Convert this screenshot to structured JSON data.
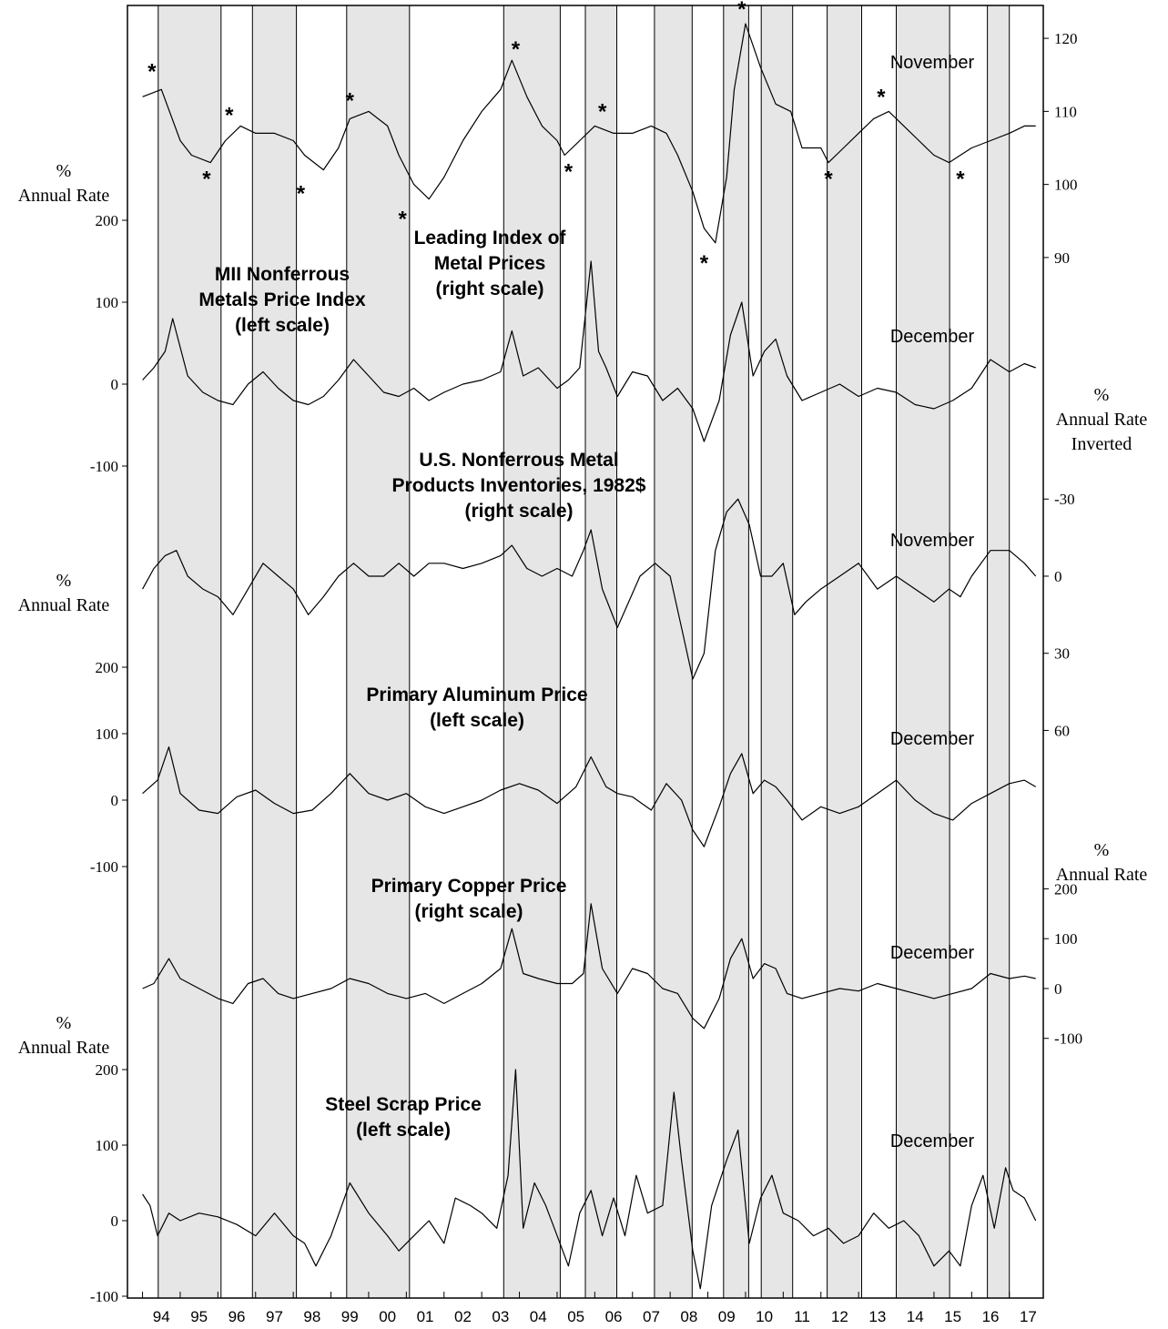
{
  "chart_data": {
    "type": "line",
    "year_ticks": [
      "94",
      "95",
      "96",
      "97",
      "98",
      "99",
      "00",
      "01",
      "02",
      "03",
      "04",
      "05",
      "06",
      "07",
      "08",
      "09",
      "10",
      "11",
      "12",
      "13",
      "14",
      "15",
      "16",
      "17"
    ],
    "shaded_periods": [
      [
        "1994-06",
        "1996-02"
      ],
      [
        "1996-12",
        "1998-02"
      ],
      [
        "1999-06",
        "2001-02"
      ],
      [
        "2003-08",
        "2005-02"
      ],
      [
        "2005-10",
        "2006-08"
      ],
      [
        "2007-08",
        "2008-08"
      ],
      [
        "2009-06",
        "2010-02"
      ],
      [
        "2010-06",
        "2011-04"
      ],
      [
        "2012-03",
        "2013-02"
      ],
      [
        "2014-01",
        "2015-06"
      ],
      [
        "2016-06",
        "2017-01"
      ]
    ],
    "panels": [
      {
        "id": "leading-index",
        "label_lines": [
          "Leading Index of",
          "Metal Prices",
          "(right scale)"
        ],
        "latest_month": "November",
        "axis_side": "right",
        "axis_unit_lines": [],
        "ticks": [
          120,
          110,
          100,
          90
        ],
        "tick_format": "plain",
        "ylim": [
          86,
          124
        ],
        "inverted": false,
        "x": [
          1994.0,
          1994.5,
          1995.0,
          1995.3,
          1995.8,
          1996.2,
          1996.6,
          1997.0,
          1997.5,
          1998.0,
          1998.3,
          1998.8,
          1999.2,
          1999.5,
          2000.0,
          2000.5,
          2000.8,
          2001.2,
          2001.6,
          2002.0,
          2002.5,
          2003.0,
          2003.5,
          2003.8,
          2004.2,
          2004.6,
          2005.0,
          2005.2,
          2005.6,
          2006.0,
          2006.5,
          2007.0,
          2007.5,
          2007.9,
          2008.2,
          2008.6,
          2008.9,
          2009.2,
          2009.5,
          2009.7,
          2010.0,
          2010.4,
          2010.8,
          2011.2,
          2011.5,
          2012.0,
          2012.2,
          2012.6,
          2013.0,
          2013.4,
          2013.8,
          2014.2,
          2014.6,
          2015.0,
          2015.4,
          2015.7,
          2016.0,
          2016.5,
          2017.0,
          2017.4,
          2017.7
        ],
        "y": [
          112,
          113,
          106,
          104,
          103,
          106,
          108,
          107,
          107,
          106,
          104,
          102,
          105,
          109,
          110,
          108,
          104,
          100,
          98,
          101,
          106,
          110,
          113,
          117,
          112,
          108,
          106,
          104,
          106,
          108,
          107,
          107,
          108,
          107,
          104,
          99,
          94,
          92,
          101,
          113,
          122,
          116,
          111,
          110,
          105,
          105,
          103,
          105,
          107,
          109,
          110,
          108,
          106,
          104,
          103,
          104,
          105,
          106,
          107,
          108,
          108
        ],
        "asterisks": [
          {
            "x": 1994.25,
            "y": 114,
            "pos": "above"
          },
          {
            "x": 1995.7,
            "y": 103,
            "pos": "below"
          },
          {
            "x": 1996.3,
            "y": 108,
            "pos": "above"
          },
          {
            "x": 1998.2,
            "y": 101,
            "pos": "below"
          },
          {
            "x": 1999.5,
            "y": 110,
            "pos": "above"
          },
          {
            "x": 2000.9,
            "y": 97.5,
            "pos": "below"
          },
          {
            "x": 2003.9,
            "y": 117,
            "pos": "above"
          },
          {
            "x": 2005.3,
            "y": 104,
            "pos": "below"
          },
          {
            "x": 2006.2,
            "y": 108.5,
            "pos": "above"
          },
          {
            "x": 2008.9,
            "y": 91.5,
            "pos": "below"
          },
          {
            "x": 2009.9,
            "y": 122.5,
            "pos": "above"
          },
          {
            "x": 2012.2,
            "y": 103,
            "pos": "below"
          },
          {
            "x": 2013.6,
            "y": 110.5,
            "pos": "above"
          },
          {
            "x": 2015.7,
            "y": 103,
            "pos": "below"
          }
        ]
      },
      {
        "id": "mii-nonferrous",
        "label_lines": [
          "MII Nonferrous",
          "Metals Price Index",
          "(left scale)"
        ],
        "latest_month": "December",
        "axis_side": "left",
        "axis_unit_lines": [
          "%",
          "Annual Rate"
        ],
        "ticks": [
          200,
          100,
          0,
          -100
        ],
        "tick_format": "plain",
        "ylim": [
          -100,
          200
        ],
        "inverted": false,
        "x": [
          1994.0,
          1994.3,
          1994.6,
          1994.8,
          1995.2,
          1995.6,
          1996.0,
          1996.4,
          1996.8,
          1997.2,
          1997.6,
          1998.0,
          1998.4,
          1998.8,
          1999.2,
          1999.6,
          2000.0,
          2000.4,
          2000.8,
          2001.2,
          2001.6,
          2002.0,
          2002.5,
          2003.0,
          2003.5,
          2003.8,
          2004.1,
          2004.5,
          2005.0,
          2005.3,
          2005.6,
          2005.9,
          2006.1,
          2006.3,
          2006.6,
          2007.0,
          2007.4,
          2007.8,
          2008.2,
          2008.6,
          2008.9,
          2009.3,
          2009.6,
          2009.9,
          2010.2,
          2010.5,
          2010.8,
          2011.1,
          2011.5,
          2012.0,
          2012.5,
          2013.0,
          2013.5,
          2014.0,
          2014.5,
          2015.0,
          2015.5,
          2016.0,
          2016.5,
          2017.0,
          2017.4,
          2017.7
        ],
        "y": [
          5,
          20,
          40,
          80,
          10,
          -10,
          -20,
          -25,
          0,
          15,
          -5,
          -20,
          -25,
          -15,
          5,
          30,
          10,
          -10,
          -15,
          -5,
          -20,
          -10,
          0,
          5,
          15,
          65,
          10,
          20,
          -5,
          5,
          20,
          150,
          40,
          20,
          -15,
          15,
          10,
          -20,
          -5,
          -30,
          -70,
          -20,
          60,
          100,
          10,
          40,
          55,
          10,
          -20,
          -10,
          0,
          -15,
          -5,
          -10,
          -25,
          -30,
          -20,
          -5,
          30,
          15,
          25,
          20
        ]
      },
      {
        "id": "us-inventories",
        "label_lines": [
          "U.S. Nonferrous Metal",
          "Products Inventories, 1982$",
          "(right scale)"
        ],
        "latest_month": "November",
        "axis_side": "right",
        "axis_unit_lines": [
          "%",
          "Annual Rate",
          "Inverted"
        ],
        "ticks": [
          -30,
          0,
          30,
          60
        ],
        "tick_format": "plain",
        "ylim": [
          -40,
          68
        ],
        "inverted": true,
        "x": [
          1994.0,
          1994.3,
          1994.6,
          1994.9,
          1995.2,
          1995.6,
          1996.0,
          1996.4,
          1996.8,
          1997.2,
          1997.6,
          1998.0,
          1998.4,
          1998.8,
          1999.2,
          1999.6,
          2000.0,
          2000.4,
          2000.8,
          2001.2,
          2001.6,
          2002.0,
          2002.5,
          2003.0,
          2003.5,
          2003.8,
          2004.2,
          2004.6,
          2005.0,
          2005.4,
          2005.7,
          2005.9,
          2006.2,
          2006.6,
          2006.9,
          2007.2,
          2007.6,
          2008.0,
          2008.3,
          2008.6,
          2008.9,
          2009.2,
          2009.5,
          2009.8,
          2010.1,
          2010.4,
          2010.7,
          2011.0,
          2011.3,
          2011.6,
          2012.0,
          2012.5,
          2013.0,
          2013.5,
          2014.0,
          2014.5,
          2015.0,
          2015.4,
          2015.7,
          2016.0,
          2016.5,
          2017.0,
          2017.4,
          2017.7
        ],
        "y": [
          5,
          -3,
          -8,
          -10,
          0,
          5,
          8,
          15,
          5,
          -5,
          0,
          5,
          15,
          8,
          0,
          -5,
          0,
          0,
          -5,
          0,
          -5,
          -5,
          -3,
          -5,
          -8,
          -12,
          -3,
          0,
          -3,
          0,
          -10,
          -18,
          5,
          20,
          10,
          0,
          -5,
          0,
          20,
          40,
          30,
          -10,
          -25,
          -30,
          -20,
          0,
          0,
          -5,
          15,
          10,
          5,
          0,
          -5,
          5,
          0,
          5,
          10,
          5,
          8,
          0,
          -10,
          -10,
          -5,
          0
        ]
      },
      {
        "id": "aluminum",
        "label_lines": [
          "Primary Aluminum Price",
          "(left scale)"
        ],
        "latest_month": "December",
        "axis_side": "left",
        "axis_unit_lines": [
          "%",
          "Annual Rate"
        ],
        "ticks": [
          200,
          100,
          0,
          -100
        ],
        "tick_format": "plain",
        "ylim": [
          -100,
          200
        ],
        "inverted": false,
        "x": [
          1994.0,
          1994.4,
          1994.7,
          1995.0,
          1995.5,
          1996.0,
          1996.5,
          1997.0,
          1997.5,
          1998.0,
          1998.5,
          1999.0,
          1999.5,
          2000.0,
          2000.5,
          2001.0,
          2001.5,
          2002.0,
          2002.5,
          2003.0,
          2003.5,
          2004.0,
          2004.5,
          2005.0,
          2005.5,
          2005.9,
          2006.3,
          2006.6,
          2007.0,
          2007.5,
          2007.9,
          2008.3,
          2008.6,
          2008.9,
          2009.3,
          2009.6,
          2009.9,
          2010.2,
          2010.5,
          2010.8,
          2011.1,
          2011.5,
          2012.0,
          2012.5,
          2013.0,
          2013.5,
          2014.0,
          2014.5,
          2015.0,
          2015.5,
          2016.0,
          2016.5,
          2017.0,
          2017.4,
          2017.7
        ],
        "y": [
          10,
          30,
          80,
          10,
          -15,
          -20,
          5,
          15,
          -5,
          -20,
          -15,
          10,
          40,
          10,
          0,
          10,
          -10,
          -20,
          -10,
          0,
          15,
          25,
          15,
          -5,
          20,
          65,
          20,
          10,
          5,
          -15,
          25,
          0,
          -45,
          -70,
          -10,
          40,
          70,
          10,
          30,
          20,
          0,
          -30,
          -10,
          -20,
          -10,
          10,
          30,
          0,
          -20,
          -30,
          -5,
          10,
          25,
          30,
          20
        ]
      },
      {
        "id": "copper",
        "label_lines": [
          "Primary Copper Price",
          "(right scale)"
        ],
        "latest_month": "December",
        "axis_side": "right",
        "axis_unit_lines": [
          "%",
          "Annual Rate"
        ],
        "ticks": [
          200,
          100,
          0,
          -100
        ],
        "tick_format": "plain",
        "ylim": [
          -190,
          230
        ],
        "inverted": false,
        "x": [
          1994.0,
          1994.3,
          1994.7,
          1995.0,
          1995.5,
          1996.0,
          1996.4,
          1996.8,
          1997.2,
          1997.6,
          1998.0,
          1998.5,
          1999.0,
          1999.5,
          2000.0,
          2000.5,
          2001.0,
          2001.5,
          2002.0,
          2002.5,
          2003.0,
          2003.5,
          2003.8,
          2004.1,
          2004.5,
          2005.0,
          2005.4,
          2005.7,
          2005.9,
          2006.2,
          2006.6,
          2007.0,
          2007.4,
          2007.8,
          2008.2,
          2008.6,
          2008.9,
          2009.3,
          2009.6,
          2009.9,
          2010.2,
          2010.5,
          2010.8,
          2011.1,
          2011.5,
          2012.0,
          2012.5,
          2013.0,
          2013.5,
          2014.0,
          2014.5,
          2015.0,
          2015.5,
          2016.0,
          2016.5,
          2017.0,
          2017.4,
          2017.7
        ],
        "y": [
          0,
          10,
          60,
          20,
          0,
          -20,
          -30,
          10,
          20,
          -10,
          -20,
          -10,
          0,
          20,
          10,
          -10,
          -20,
          -10,
          -30,
          -10,
          10,
          40,
          120,
          30,
          20,
          10,
          10,
          30,
          170,
          40,
          -10,
          40,
          30,
          0,
          -10,
          -60,
          -80,
          -20,
          60,
          100,
          20,
          50,
          40,
          -10,
          -20,
          -10,
          0,
          -5,
          10,
          0,
          -10,
          -20,
          -10,
          0,
          30,
          20,
          25,
          20
        ]
      },
      {
        "id": "steel-scrap",
        "label_lines": [
          "Steel Scrap Price",
          "(left scale)"
        ],
        "latest_month": "December",
        "axis_side": "left",
        "axis_unit_lines": [
          "%",
          "Annual Rate"
        ],
        "ticks": [
          200,
          100,
          0,
          -100
        ],
        "tick_format": "plain",
        "ylim": [
          -100,
          200
        ],
        "inverted": false,
        "x": [
          1994.0,
          1994.2,
          1994.4,
          1994.7,
          1995.0,
          1995.5,
          1996.0,
          1996.5,
          1997.0,
          1997.5,
          1998.0,
          1998.3,
          1998.6,
          1999.0,
          1999.5,
          2000.0,
          2000.5,
          2000.8,
          2001.2,
          2001.6,
          2002.0,
          2002.3,
          2002.7,
          2003.0,
          2003.4,
          2003.7,
          2003.9,
          2004.1,
          2004.4,
          2004.7,
          2005.0,
          2005.3,
          2005.6,
          2005.9,
          2006.2,
          2006.5,
          2006.8,
          2007.1,
          2007.4,
          2007.8,
          2008.1,
          2008.3,
          2008.6,
          2008.8,
          2009.1,
          2009.5,
          2009.8,
          2010.1,
          2010.4,
          2010.7,
          2011.0,
          2011.4,
          2011.8,
          2012.2,
          2012.6,
          2013.0,
          2013.4,
          2013.8,
          2014.2,
          2014.6,
          2015.0,
          2015.4,
          2015.7,
          2016.0,
          2016.3,
          2016.6,
          2016.9,
          2017.1,
          2017.4,
          2017.7
        ],
        "y": [
          35,
          20,
          -20,
          10,
          0,
          10,
          5,
          -5,
          -20,
          10,
          -20,
          -30,
          -60,
          -20,
          50,
          10,
          -20,
          -40,
          -20,
          0,
          -30,
          30,
          20,
          10,
          -10,
          60,
          200,
          -10,
          50,
          20,
          -20,
          -60,
          10,
          40,
          -20,
          30,
          -20,
          60,
          10,
          20,
          170,
          80,
          -40,
          -90,
          20,
          80,
          120,
          -30,
          30,
          60,
          10,
          0,
          -20,
          -10,
          -30,
          -20,
          10,
          -10,
          0,
          -20,
          -60,
          -40,
          -60,
          20,
          60,
          -10,
          70,
          40,
          30,
          0
        ]
      }
    ]
  }
}
